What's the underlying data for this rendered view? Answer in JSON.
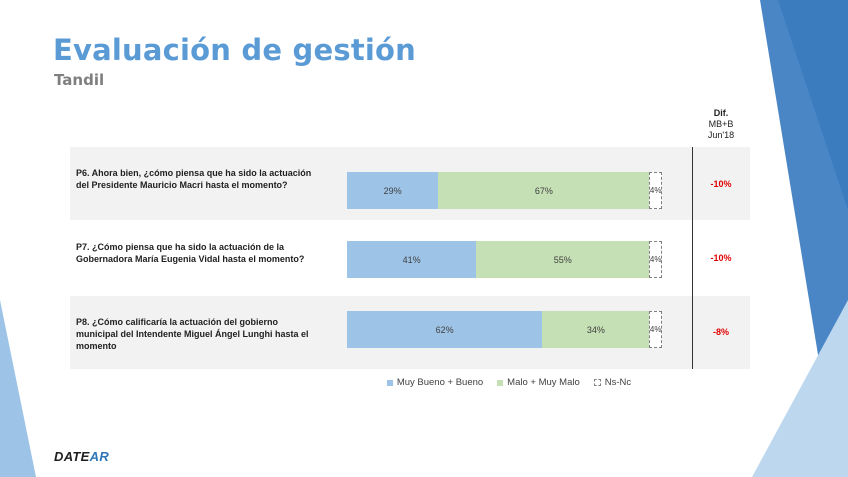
{
  "header": {
    "title": "Evaluación de gestión",
    "subtitle": "Tandil"
  },
  "dif_header": {
    "line1": "Dif.",
    "line2": "MB+B",
    "line3": "Jun'18"
  },
  "legend": {
    "good": "Muy Bueno + Bueno",
    "bad": "Malo + Muy Malo",
    "ns": "Ns-Nc"
  },
  "logo": {
    "part1": "DATE",
    "part2": "AR"
  },
  "colors": {
    "good": "#9dc3e6",
    "bad": "#c5e0b4",
    "title": "#5b9bd5",
    "dif": "#e00000"
  },
  "chart_data": {
    "type": "bar",
    "orientation": "horizontal",
    "stacked": true,
    "categories": [
      "P6. Ahora bien, ¿cómo piensa que ha sido la actuación del Presidente Mauricio Macri hasta el momento?",
      "P7. ¿Cómo piensa que ha sido la actuación de la Gobernadora María Eugenia Vidal hasta el momento?",
      "P8. ¿Cómo calificaría la actuación del gobierno municipal del Intendente Miguel Ángel Lunghi hasta el momento"
    ],
    "series": [
      {
        "name": "Muy Bueno + Bueno",
        "values": [
          29,
          41,
          62
        ],
        "labels": [
          "29%",
          "41%",
          "62%"
        ]
      },
      {
        "name": "Malo + Muy Malo",
        "values": [
          67,
          55,
          34
        ],
        "labels": [
          "67%",
          "55%",
          "34%"
        ]
      },
      {
        "name": "Ns-Nc",
        "values": [
          4,
          4,
          4
        ],
        "labels": [
          "4%",
          "4%",
          "4%"
        ]
      }
    ],
    "dif_values": [
      "-10%",
      "-10%",
      "-8%"
    ],
    "xlim": [
      0,
      100
    ],
    "legend_position": "bottom"
  }
}
